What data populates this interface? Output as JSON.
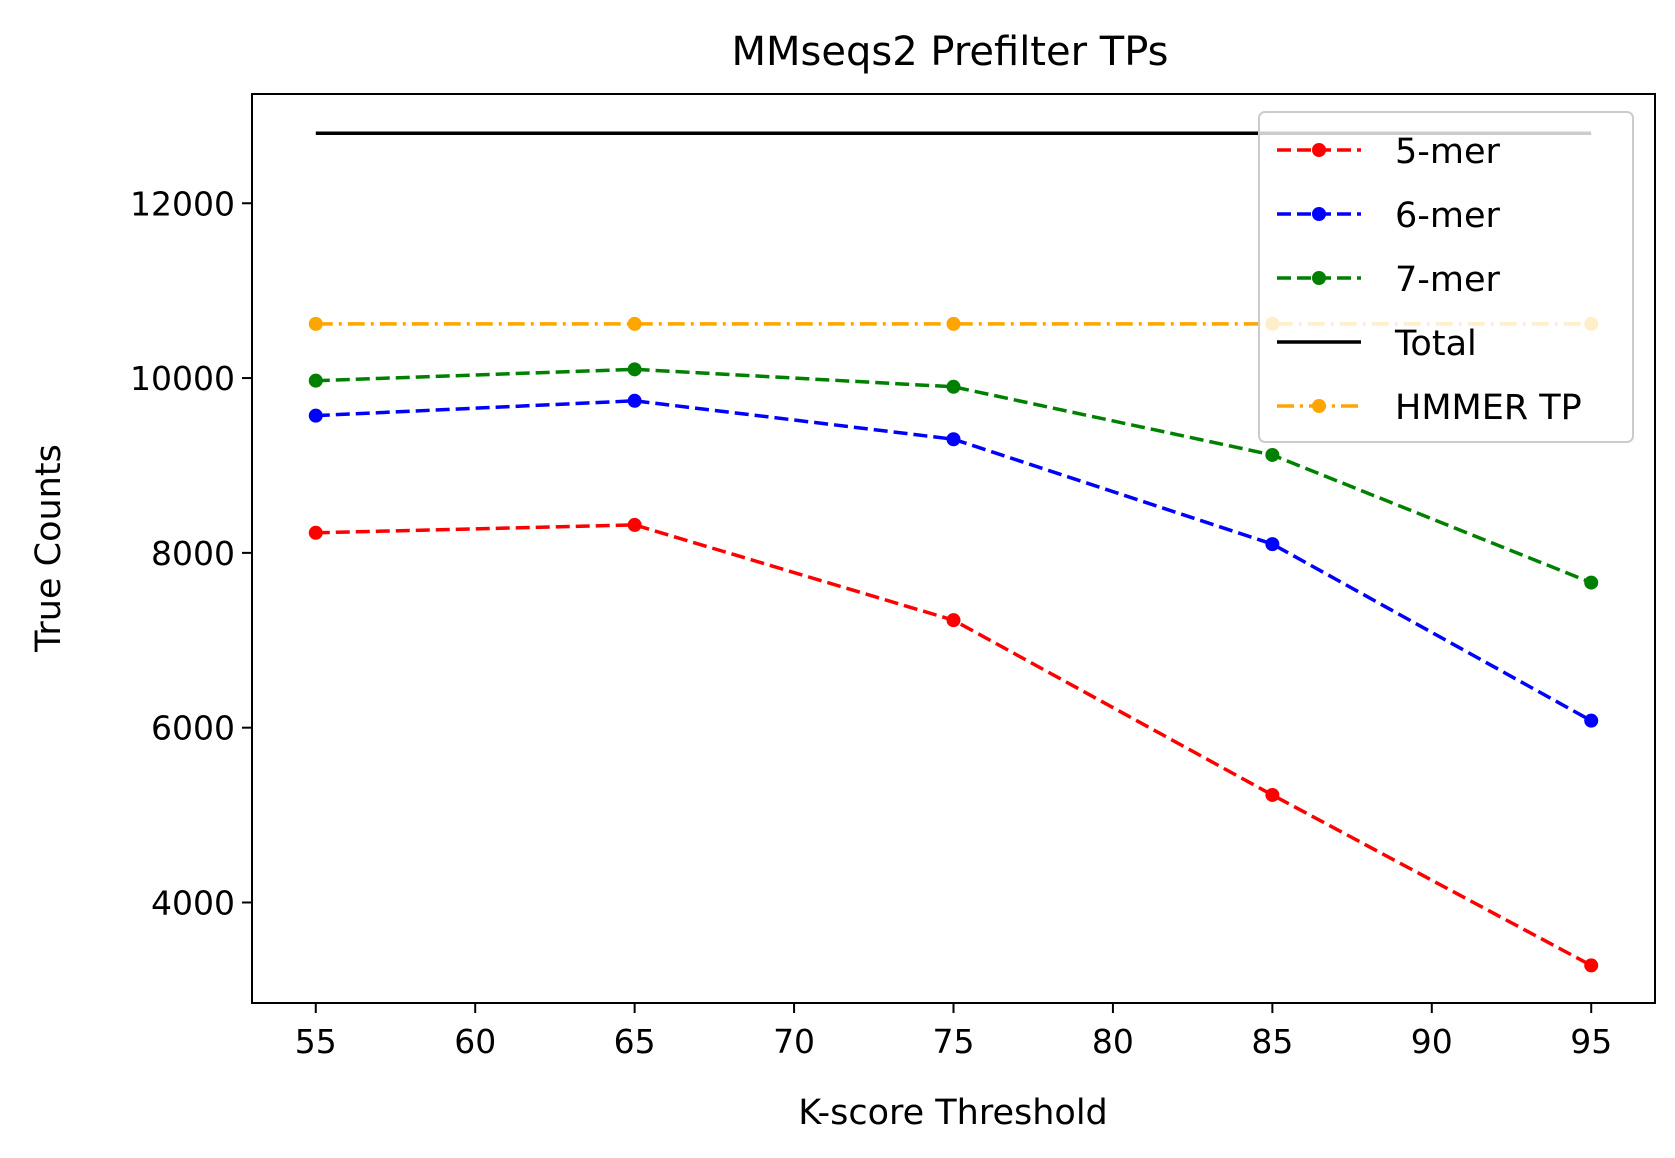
{
  "chart_data": {
    "type": "line",
    "title": "MMseqs2 Prefilter TPs",
    "xlabel": "K-score Threshold",
    "ylabel": "True Counts",
    "x": [
      55,
      65,
      75,
      85,
      95
    ],
    "xlim": [
      53,
      97
    ],
    "ylim": [
      2850,
      13250
    ],
    "xticks": [
      55,
      60,
      65,
      70,
      75,
      80,
      85,
      90,
      95
    ],
    "yticks": [
      4000,
      6000,
      8000,
      10000,
      12000
    ],
    "grid": false,
    "legend_position": "top-right",
    "series": [
      {
        "name": "5-mer",
        "color": "#ff0000",
        "style": "dashed",
        "marker": true,
        "values": [
          8230,
          8320,
          7230,
          5230,
          3280
        ]
      },
      {
        "name": "6-mer",
        "color": "#0000ff",
        "style": "dashed",
        "marker": true,
        "values": [
          9570,
          9740,
          9300,
          8100,
          6080
        ]
      },
      {
        "name": "7-mer",
        "color": "#008000",
        "style": "dashed",
        "marker": true,
        "values": [
          9970,
          10100,
          9900,
          9120,
          7660
        ]
      },
      {
        "name": "Total",
        "color": "#000000",
        "style": "solid",
        "marker": false,
        "values": [
          12800,
          12800,
          12800,
          12800,
          12800
        ]
      },
      {
        "name": "HMMER TP",
        "color": "#ffa500",
        "style": "dashdot",
        "marker": true,
        "values": [
          10620,
          10620,
          10620,
          10620,
          10620
        ]
      }
    ]
  }
}
